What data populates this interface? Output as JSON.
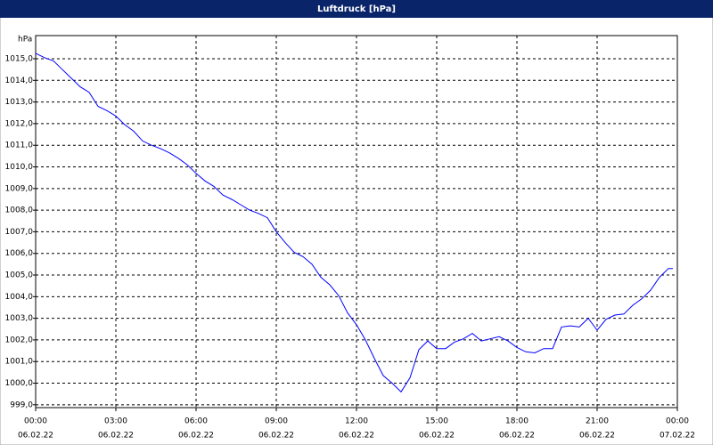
{
  "chart_data": {
    "type": "line",
    "title": "Luftdruck [hPa]",
    "ylabel": "hPa",
    "x": [
      0,
      20,
      40,
      60,
      80,
      100,
      120,
      140,
      160,
      180,
      200,
      220,
      240,
      260,
      280,
      300,
      320,
      340,
      360,
      380,
      400,
      420,
      440,
      460,
      480,
      500,
      520,
      540,
      560,
      580,
      600,
      620,
      640,
      660,
      680,
      700,
      720,
      740,
      760,
      780,
      800,
      820,
      840,
      860,
      880,
      900,
      920,
      940,
      960,
      980,
      1000,
      1020,
      1040,
      1060,
      1080,
      1100,
      1120,
      1140,
      1160,
      1180,
      1200,
      1220,
      1240,
      1260,
      1280,
      1300,
      1320,
      1340,
      1360,
      1380,
      1400,
      1420,
      1430
    ],
    "values": [
      1015.25,
      1015.05,
      1014.9,
      1014.5,
      1014.1,
      1013.7,
      1013.45,
      1012.8,
      1012.6,
      1012.35,
      1011.95,
      1011.65,
      1011.2,
      1011.0,
      1010.85,
      1010.65,
      1010.4,
      1010.1,
      1009.7,
      1009.35,
      1009.1,
      1008.7,
      1008.5,
      1008.25,
      1008.0,
      1007.85,
      1007.65,
      1007.0,
      1006.5,
      1006.05,
      1005.85,
      1005.5,
      1004.9,
      1004.55,
      1004.05,
      1003.25,
      1002.7,
      1002.0,
      1001.15,
      1000.35,
      1000.0,
      999.6,
      1000.25,
      1001.55,
      1001.95,
      1001.6,
      1001.6,
      1001.9,
      1002.05,
      1002.3,
      1001.95,
      1002.05,
      1002.15,
      1001.95,
      1001.65,
      1001.45,
      1001.4,
      1001.6,
      1001.6,
      1002.6,
      1002.65,
      1002.6,
      1003.0,
      1002.45,
      1002.95,
      1003.15,
      1003.2,
      1003.6,
      1003.9,
      1004.3,
      1004.9,
      1005.3,
      1005.3
    ],
    "color": "#0000ff",
    "xlim": [
      0,
      1440
    ],
    "xticks": [
      {
        "value": 0,
        "label": "00:00"
      },
      {
        "value": 180,
        "label": "03:00"
      },
      {
        "value": 360,
        "label": "06:00"
      },
      {
        "value": 540,
        "label": "09:00"
      },
      {
        "value": 720,
        "label": "12:00"
      },
      {
        "value": 900,
        "label": "15:00"
      },
      {
        "value": 1080,
        "label": "18:00"
      },
      {
        "value": 1260,
        "label": "21:00"
      },
      {
        "value": 1440,
        "label": "00:00"
      }
    ],
    "xtick_dates": [
      "06.02.22",
      "06.02.22",
      "06.02.22",
      "06.02.22",
      "06.02.22",
      "06.02.22",
      "06.02.22",
      "06.02.22",
      "07.02.22"
    ],
    "ylim": [
      998.87,
      1016.07
    ],
    "yticks": [
      {
        "value": 999,
        "label": "999,0"
      },
      {
        "value": 1000,
        "label": "1000,0"
      },
      {
        "value": 1001,
        "label": "1001,0"
      },
      {
        "value": 1002,
        "label": "1002,0"
      },
      {
        "value": 1003,
        "label": "1003,0"
      },
      {
        "value": 1004,
        "label": "1004,0"
      },
      {
        "value": 1005,
        "label": "1005,0"
      },
      {
        "value": 1006,
        "label": "1006,0"
      },
      {
        "value": 1007,
        "label": "1007,0"
      },
      {
        "value": 1008,
        "label": "1008,0"
      },
      {
        "value": 1009,
        "label": "1009,0"
      },
      {
        "value": 1010,
        "label": "1010,0"
      },
      {
        "value": 1011,
        "label": "1011,0"
      },
      {
        "value": 1012,
        "label": "1012,0"
      },
      {
        "value": 1013,
        "label": "1013,0"
      },
      {
        "value": 1014,
        "label": "1014,0"
      },
      {
        "value": 1015,
        "label": "1015,0"
      }
    ],
    "grid": true
  }
}
